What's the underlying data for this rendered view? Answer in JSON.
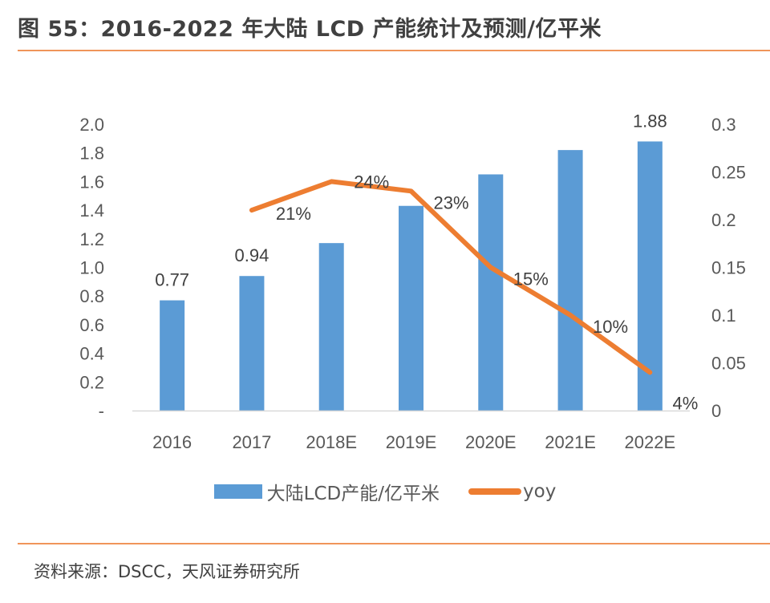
{
  "header": {
    "title": "图 55：2016-2022 年大陆 LCD 产能统计及预测/亿平米"
  },
  "footer": {
    "source": "资料来源：DSCC，天风证券研究所"
  },
  "colors": {
    "bar": "#5b9bd5",
    "line": "#ed7d31",
    "rule": "#f0955a",
    "axis": "#d9d9d9"
  },
  "chart_data": {
    "type": "bar",
    "title": "2016-2022 年大陆 LCD 产能统计及预测/亿平米",
    "categories": [
      "2016",
      "2017",
      "2018E",
      "2019E",
      "2020E",
      "2021E",
      "2022E"
    ],
    "series": [
      {
        "name": "大陆LCD产能/亿平米",
        "type": "bar",
        "axis": "left",
        "values": [
          0.77,
          0.94,
          1.17,
          1.43,
          1.65,
          1.82,
          1.88
        ],
        "data_labels": [
          "0.77",
          "0.94",
          null,
          null,
          null,
          null,
          "1.88"
        ]
      },
      {
        "name": "yoy",
        "type": "line",
        "axis": "right",
        "values": [
          null,
          0.21,
          0.24,
          0.23,
          0.15,
          0.1,
          0.04
        ],
        "data_labels": [
          null,
          "21%",
          "24%",
          "23%",
          "15%",
          "10%",
          "4%"
        ]
      }
    ],
    "left_axis": {
      "ylim": [
        0,
        2.0
      ],
      "ticks": [
        0,
        0.2,
        0.4,
        0.6,
        0.8,
        1.0,
        1.2,
        1.4,
        1.6,
        1.8,
        2.0
      ],
      "tick_labels": [
        "-",
        "0.2",
        "0.4",
        "0.6",
        "0.8",
        "1.0",
        "1.2",
        "1.4",
        "1.6",
        "1.8",
        "2.0"
      ]
    },
    "right_axis": {
      "ylim": [
        0,
        0.3
      ],
      "ticks": [
        0,
        0.05,
        0.1,
        0.15,
        0.2,
        0.25,
        0.3
      ],
      "tick_labels": [
        "0",
        "0.05",
        "0.1",
        "0.15",
        "0.2",
        "0.25",
        "0.3"
      ]
    },
    "xlabel": "",
    "ylabel": "",
    "grid": false,
    "legend": {
      "position": "bottom",
      "entries": [
        "大陆LCD产能/亿平米",
        "yoy"
      ]
    }
  }
}
